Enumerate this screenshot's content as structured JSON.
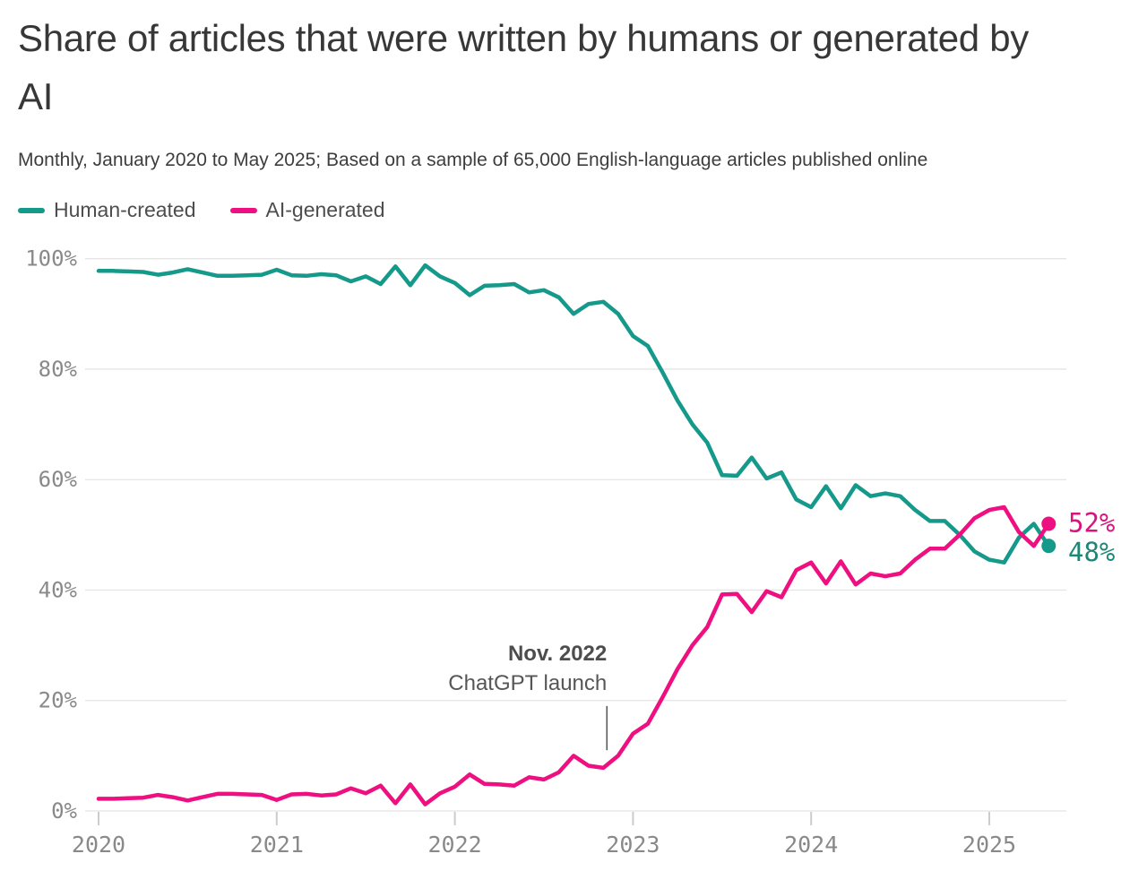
{
  "header": {
    "title": "Share of articles that were written by humans or generated by AI",
    "subtitle": "Monthly, January 2020 to May 2025; Based on a sample of 65,000 English-language articles published online"
  },
  "legend": {
    "items": [
      {
        "label": "Human-created",
        "color": "#15998a"
      },
      {
        "label": "AI-generated",
        "color": "#ee0f80"
      }
    ]
  },
  "chart_data": {
    "type": "line",
    "x_unit": "month",
    "x_start": "2020-01",
    "x_end": "2025-05",
    "ylim": [
      0,
      100
    ],
    "grid": "horizontal",
    "legend_position": "top-left",
    "y_ticks": [
      {
        "label": "0%",
        "value": 0
      },
      {
        "label": "20%",
        "value": 20
      },
      {
        "label": "40%",
        "value": 40
      },
      {
        "label": "60%",
        "value": 60
      },
      {
        "label": "80%",
        "value": 80
      },
      {
        "label": "100%",
        "value": 100
      }
    ],
    "x_ticks": [
      {
        "label": "2020",
        "month_index": 0
      },
      {
        "label": "2021",
        "month_index": 12
      },
      {
        "label": "2022",
        "month_index": 24
      },
      {
        "label": "2023",
        "month_index": 36
      },
      {
        "label": "2024",
        "month_index": 48
      },
      {
        "label": "2025",
        "month_index": 60
      }
    ],
    "series": [
      {
        "name": "Human-created",
        "color": "#15998a",
        "end_label": "48%",
        "end_label_color": "#1e8677",
        "end_label_dy": 8,
        "values": [
          97.8,
          97.8,
          97.7,
          97.6,
          97.1,
          97.5,
          98.1,
          97.5,
          96.9,
          96.9,
          97.0,
          97.1,
          98.0,
          97.0,
          96.9,
          97.2,
          97.0,
          95.9,
          96.8,
          95.4,
          98.6,
          95.2,
          98.8,
          96.8,
          95.6,
          93.4,
          95.1,
          95.2,
          95.4,
          93.9,
          94.3,
          93.0,
          90.0,
          91.8,
          92.2,
          90.0,
          86.0,
          84.2,
          79.4,
          74.3,
          70.0,
          66.7,
          60.8,
          60.7,
          64.0,
          60.2,
          61.3,
          56.4,
          55.0,
          58.8,
          54.8,
          59.0,
          57.0,
          57.5,
          57.0,
          54.5,
          52.5,
          52.5,
          50.0,
          47.0,
          45.5,
          45.0,
          49.5,
          52.0,
          48.0
        ]
      },
      {
        "name": "AI-generated",
        "color": "#ee0f80",
        "end_label": "52%",
        "end_label_color": "#d6157e",
        "end_label_dy": 0,
        "values": [
          2.2,
          2.2,
          2.3,
          2.4,
          2.9,
          2.5,
          1.9,
          2.5,
          3.1,
          3.1,
          3.0,
          2.9,
          2.0,
          3.0,
          3.1,
          2.8,
          3.0,
          4.1,
          3.2,
          4.6,
          1.4,
          4.8,
          1.2,
          3.2,
          4.4,
          6.6,
          4.9,
          4.8,
          4.6,
          6.1,
          5.7,
          7.0,
          10.0,
          8.2,
          7.8,
          10.0,
          14.0,
          15.8,
          20.6,
          25.7,
          30.0,
          33.3,
          39.2,
          39.3,
          36.0,
          39.8,
          38.7,
          43.6,
          45.0,
          41.2,
          45.2,
          41.0,
          43.0,
          42.5,
          43.0,
          45.5,
          47.5,
          47.5,
          50.0,
          53.0,
          54.5,
          55.0,
          50.5,
          48.0,
          52.0
        ]
      }
    ],
    "annotation": {
      "text_line1": "Nov. 2022",
      "text_line2": "ChatGPT launch",
      "month": "2022-11",
      "month_index": 34,
      "pointer_from_value": 19,
      "pointer_to_value": 11
    }
  }
}
